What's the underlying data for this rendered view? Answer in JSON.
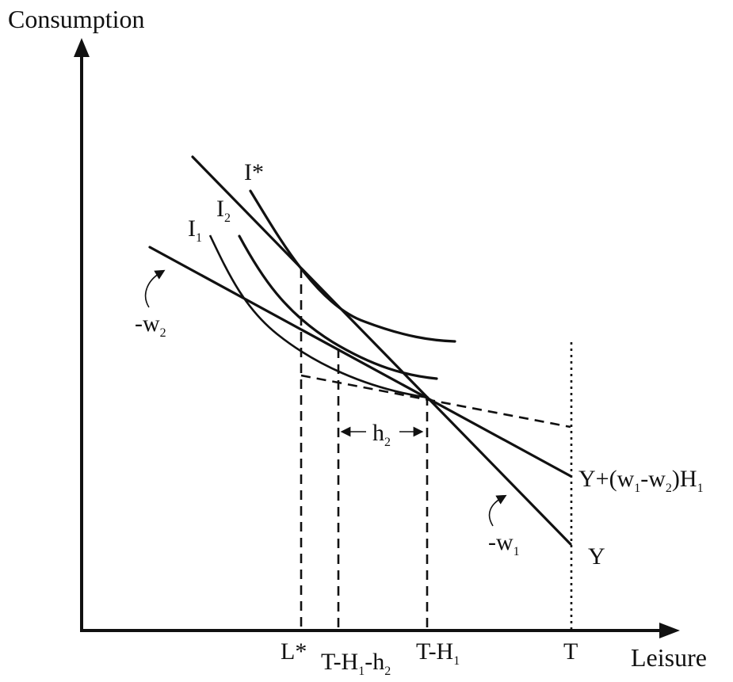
{
  "axes": {
    "y_label": "Consumption",
    "x_label": "Leisure"
  },
  "x_ticks": {
    "l_star": "L*",
    "t_h1_h2_a": "T-H",
    "t_h1_h2_s1": "1",
    "t_h1_h2_b": "-h",
    "t_h1_h2_s2": "2",
    "t_h1_a": "T-H",
    "t_h1_s1": "1",
    "t": "T"
  },
  "curves": {
    "i_star": "I*",
    "i1_base": "I",
    "i1_sub": "1",
    "i2_base": "I",
    "i2_sub": "2"
  },
  "slopes": {
    "w2_base": "-w",
    "w2_sub": "2",
    "w1_base": "-w",
    "w1_sub": "1"
  },
  "gap": {
    "h2_base": "h",
    "h2_sub": "2"
  },
  "intercepts": {
    "y_label": "Y",
    "y2_a": "Y+(w",
    "y2_s1": "1",
    "y2_b": "-w",
    "y2_s2": "2",
    "y2_c": ")H",
    "y2_s3": "1"
  }
}
